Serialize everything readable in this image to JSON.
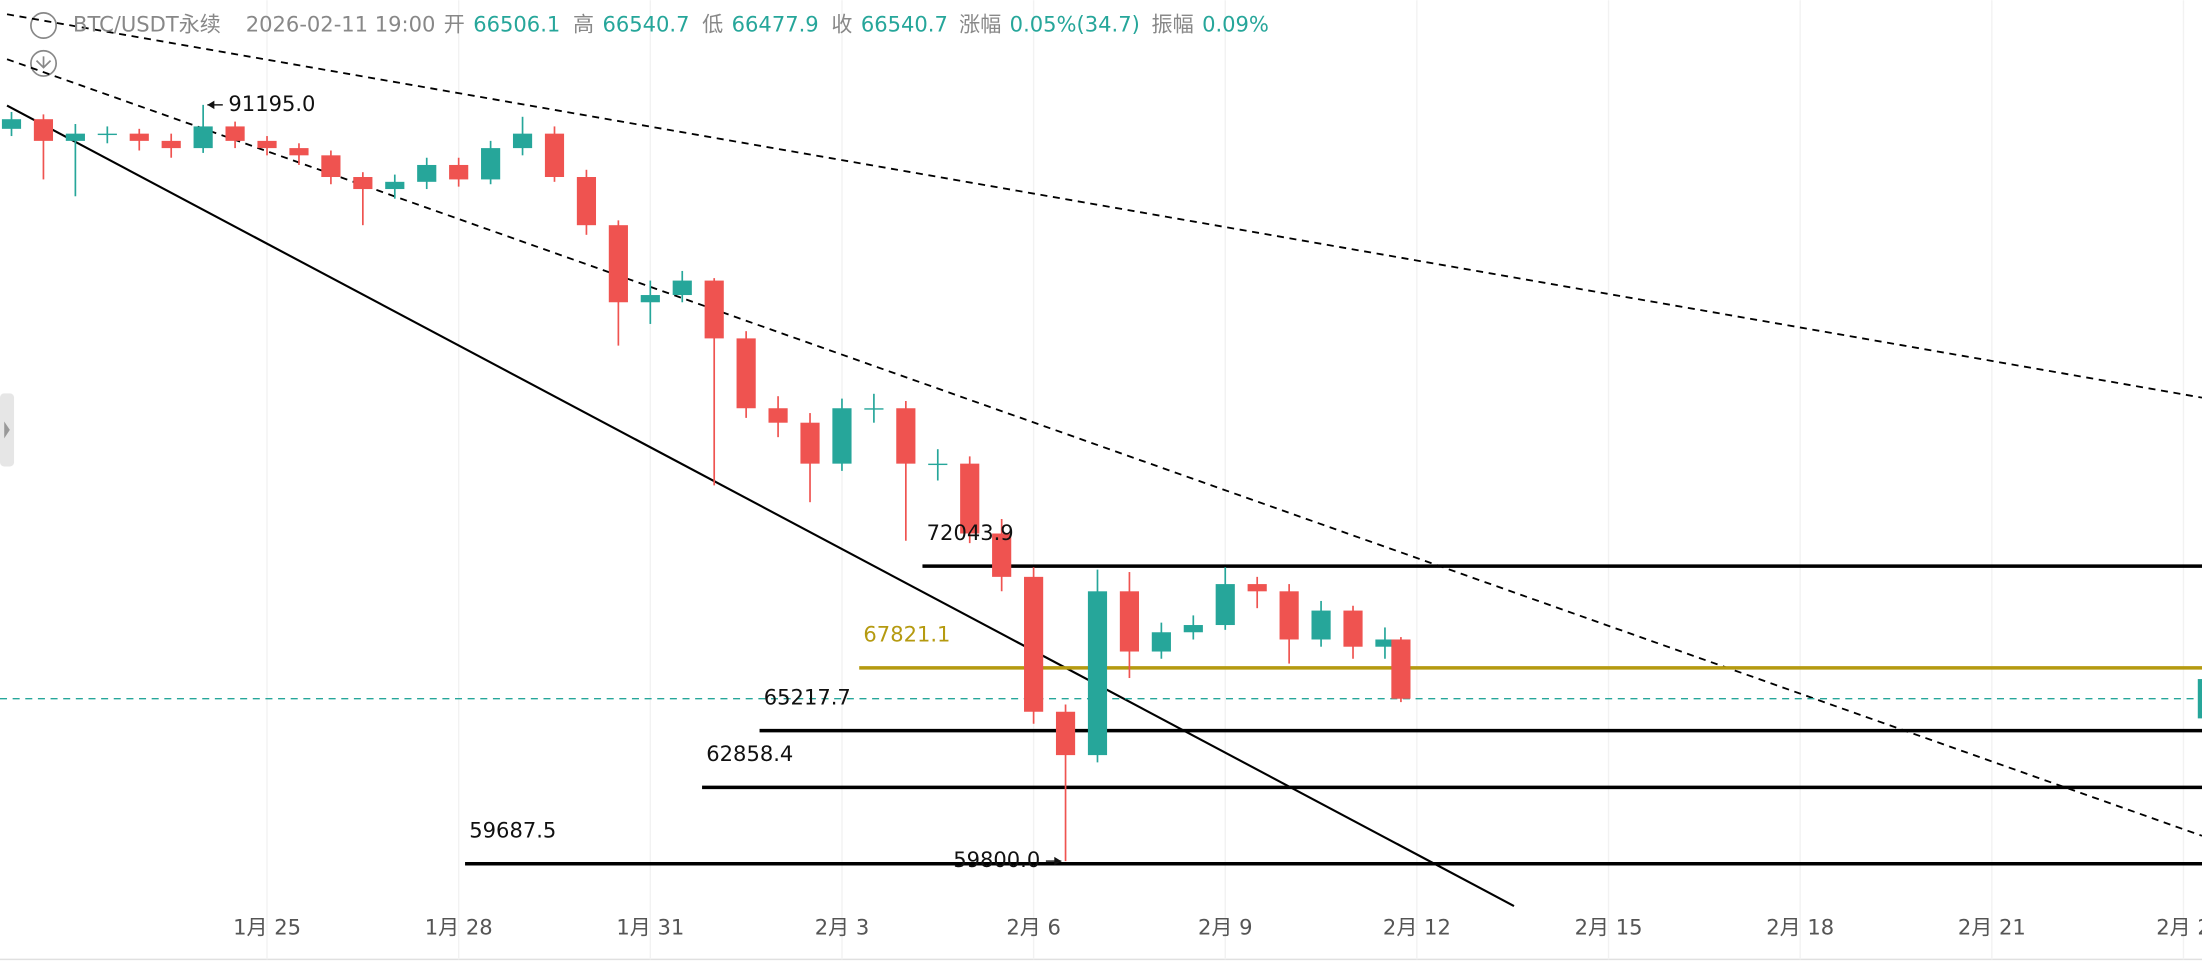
{
  "chart_data": {
    "type": "candlestick",
    "header": {
      "symbol": "BTC/USDT永续",
      "time": "2026-02-11 19:00",
      "fields": [
        {
          "name": "开",
          "text": "66506.1"
        },
        {
          "name": "高",
          "text": "66540.7"
        },
        {
          "name": "低",
          "text": "66477.9"
        },
        {
          "name": "收",
          "text": "66540.7"
        },
        {
          "name": "涨幅",
          "text": "0.05%(34.7)"
        },
        {
          "name": "振幅",
          "text": "0.09%"
        }
      ]
    },
    "up_color": "#26a69a",
    "down_color": "#ef5350",
    "x": [
      21,
      21.5,
      22,
      22.5,
      23,
      23.5,
      24,
      24.5,
      25,
      25.5,
      26,
      26.5,
      27,
      27.5,
      28,
      28.5,
      29,
      29.5,
      30,
      30.5,
      31,
      31.5,
      32,
      32.5,
      33,
      33.5,
      34,
      34.5,
      35,
      35.5,
      36,
      36.5,
      37,
      37.5,
      38,
      38.5,
      39,
      39.5,
      40,
      40.5,
      41,
      41.5,
      42,
      42.5,
      42.75
    ],
    "open": [
      90200,
      90600,
      89700,
      90000,
      90000,
      89700,
      89400,
      90300,
      89700,
      89400,
      89100,
      88200,
      87700,
      88000,
      88700,
      88100,
      89400,
      90000,
      88200,
      86200,
      83000,
      83300,
      83900,
      81500,
      78600,
      78000,
      76300,
      78600,
      78600,
      76300,
      76300,
      73400,
      71600,
      66000,
      64200,
      71000,
      68500,
      69300,
      69600,
      71300,
      71000,
      69000,
      70200,
      68700,
      69000
    ],
    "high": [
      90900,
      90800,
      90400,
      90300,
      90200,
      90000,
      91195,
      90500,
      89900,
      89600,
      89300,
      88400,
      88300,
      89000,
      89000,
      89700,
      90700,
      90300,
      88500,
      86400,
      83900,
      84300,
      84000,
      81800,
      79100,
      78400,
      79000,
      79200,
      78900,
      76900,
      76600,
      74000,
      72000,
      66300,
      71900,
      71800,
      69700,
      70000,
      72000,
      71600,
      71300,
      70600,
      70400,
      69500,
      69100
    ],
    "low": [
      89900,
      88100,
      87400,
      89600,
      89300,
      89000,
      89200,
      89400,
      89100,
      88700,
      87900,
      86200,
      87300,
      87700,
      87800,
      87900,
      89100,
      88000,
      85800,
      81200,
      82100,
      83000,
      75400,
      78200,
      77400,
      74700,
      76000,
      78000,
      73100,
      75600,
      73000,
      71000,
      65500,
      59800,
      63900,
      67400,
      68200,
      69000,
      69400,
      70300,
      68000,
      68700,
      68200,
      68200,
      66400
    ],
    "close": [
      90600,
      89700,
      90000,
      90000,
      89700,
      89400,
      90300,
      89700,
      89400,
      89100,
      88200,
      87700,
      88000,
      88700,
      88100,
      89400,
      90000,
      88200,
      86200,
      83000,
      83300,
      83900,
      81500,
      78600,
      78000,
      76300,
      78600,
      78600,
      76300,
      76300,
      73400,
      71600,
      66000,
      64200,
      71000,
      68500,
      69300,
      69600,
      71300,
      71000,
      69000,
      70200,
      68700,
      69000,
      66540.7
    ],
    "xlim": [
      20.82,
      55.29
    ],
    "ylim": [
      55720,
      95540
    ],
    "xticks": [
      {
        "value": 25,
        "label": "1月 25"
      },
      {
        "value": 28,
        "label": "1月 28"
      },
      {
        "value": 31,
        "label": "1月 31"
      },
      {
        "value": 34,
        "label": "2月 3"
      },
      {
        "value": 37,
        "label": "2月 6"
      },
      {
        "value": 40,
        "label": "2月 9"
      },
      {
        "value": 43,
        "label": "2月 12"
      },
      {
        "value": 46,
        "label": "2月 15"
      },
      {
        "value": 49,
        "label": "2月 18"
      },
      {
        "value": 52,
        "label": "2月 21"
      },
      {
        "value": 55,
        "label": "2月 2"
      }
    ],
    "extremes": [
      {
        "x": 24,
        "value": 91195,
        "label": "91195.0",
        "side": "right"
      },
      {
        "x": 37.5,
        "value": 59800,
        "label": "59800.0",
        "side": "left"
      }
    ],
    "levels": [
      {
        "value": 72043.9,
        "label": "72043.9",
        "from": 35.26,
        "color": "#000000"
      },
      {
        "value": 67821.1,
        "label": "67821.1",
        "from": 34.27,
        "color": "#b59a10"
      },
      {
        "value": 65217.7,
        "label": "65217.7",
        "from": 32.71,
        "color": "#000000"
      },
      {
        "value": 62858.4,
        "label": "62858.4",
        "from": 31.81,
        "color": "#000000"
      },
      {
        "value": 59687.5,
        "label": "59687.5",
        "from": 28.1,
        "color": "#000000"
      }
    ],
    "last_price": {
      "value": 66540.7,
      "color": "#26a69a"
    },
    "trendlines": [
      {
        "points": [
          [
            20.93,
            91166
          ],
          [
            44.52,
            57935
          ]
        ],
        "dashed": false
      },
      {
        "points": [
          [
            20.93,
            93090
          ],
          [
            55.29,
            60850
          ]
        ],
        "dashed": true
      },
      {
        "points": [
          [
            20.93,
            94956
          ],
          [
            55.29,
            79040
          ]
        ],
        "dashed": true
      }
    ]
  }
}
